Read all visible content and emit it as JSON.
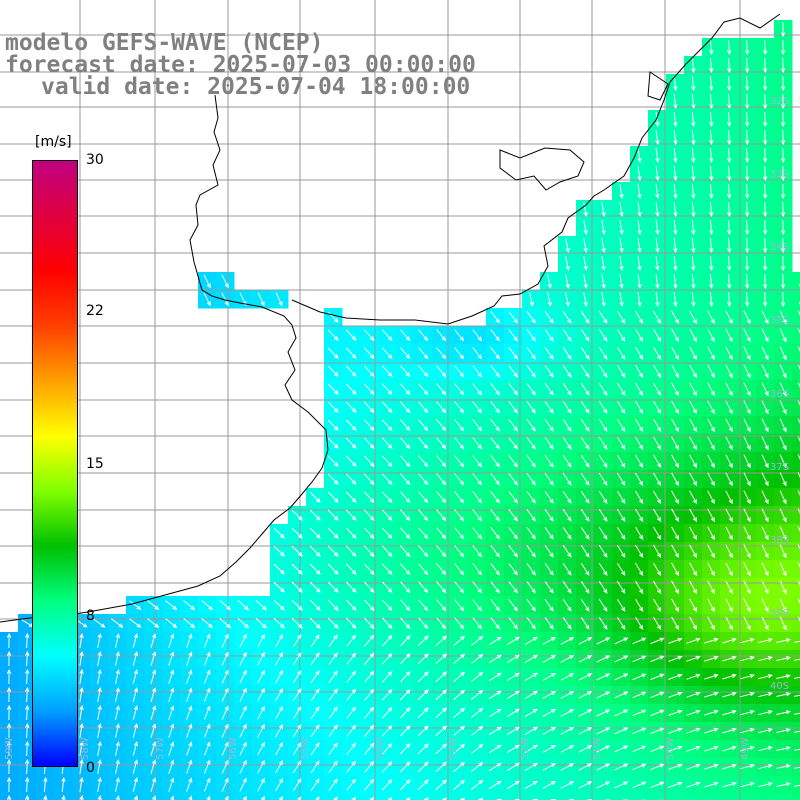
{
  "title": {
    "model": "modelo GEFS-WAVE (NCEP)",
    "forecast": "forecast date: 2025-07-03 00:00:00",
    "valid": "valid date: 2025-07-04 18:00:00"
  },
  "colorbar": {
    "units": "[m/s]",
    "min": 0,
    "max": 30,
    "ticks": [
      "30",
      "22",
      "15",
      "8",
      "0"
    ],
    "colors": [
      "#0000ff",
      "#00a0ff",
      "#00ffff",
      "#00ff80",
      "#00c000",
      "#80ff00",
      "#ffff00",
      "#ffa000",
      "#ff4000",
      "#ff0000",
      "#e00040",
      "#c00080"
    ]
  },
  "grid": {
    "lat_labels": [
      "32S",
      "33S",
      "34S",
      "35S",
      "36S",
      "37S",
      "38S",
      "39S",
      "40S"
    ],
    "lon_labels": [
      "59W",
      "58W",
      "57W",
      "56W",
      "55W",
      "54W",
      "53W",
      "52W",
      "51W",
      "50W",
      "49W"
    ]
  }
}
